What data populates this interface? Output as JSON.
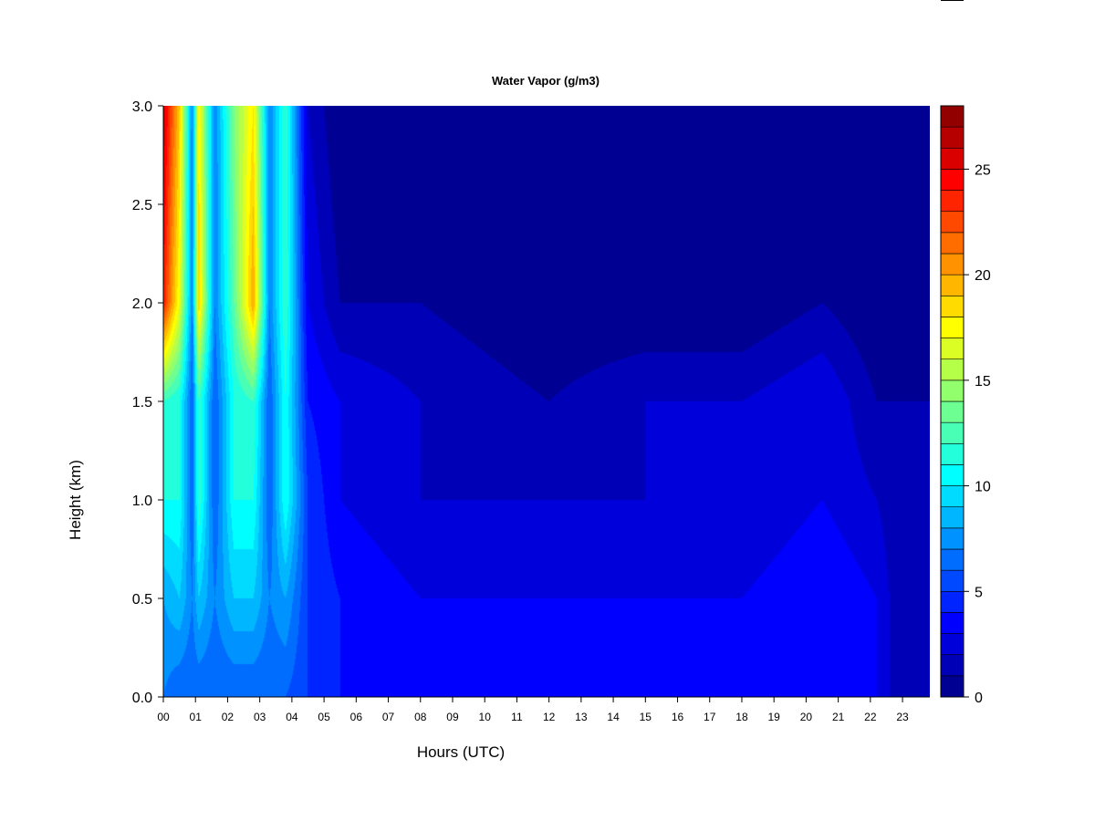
{
  "chart_data": {
    "type": "heatmap",
    "title": "Water Vapor (g/m3)",
    "xlabel": "Hours (UTC)",
    "ylabel": "Height (km)",
    "x_ticks": [
      "00",
      "01",
      "02",
      "03",
      "04",
      "05",
      "06",
      "07",
      "08",
      "09",
      "10",
      "11",
      "12",
      "13",
      "14",
      "15",
      "16",
      "17",
      "18",
      "19",
      "20",
      "21",
      "22",
      "23"
    ],
    "xlim": [
      0,
      23.85
    ],
    "y_ticks": [
      "0.0",
      "0.5",
      "1.0",
      "1.5",
      "2.0",
      "2.5",
      "3.0"
    ],
    "ylim": [
      0,
      3
    ],
    "colorbar": {
      "range": [
        0,
        28
      ],
      "step": 1,
      "ticks": [
        "0",
        "5",
        "10",
        "15",
        "20",
        "25"
      ],
      "tick_values": [
        0,
        5,
        10,
        15,
        20,
        25
      ],
      "colormap": "jet"
    },
    "grid": false,
    "time_height_profile_estimates": [
      {
        "hour": 0.0,
        "v_0km": 7,
        "v_0_5km": 8,
        "v_1km": 11,
        "v_1_5km": 12,
        "v_2km": 24,
        "v_3km": 26
      },
      {
        "hour": 0.5,
        "v_0km": 6,
        "v_0_5km": 9,
        "v_1km": 11,
        "v_1_5km": 11,
        "v_2km": 17,
        "v_3km": 19
      },
      {
        "hour": 0.9,
        "v_0km": 6,
        "v_0_5km": 7,
        "v_1km": 6,
        "v_1_5km": 6,
        "v_2km": 7,
        "v_3km": 7
      },
      {
        "hour": 1.1,
        "v_0km": 6,
        "v_0_5km": 9,
        "v_1km": 12,
        "v_1_5km": 12,
        "v_2km": 19,
        "v_3km": 18
      },
      {
        "hour": 1.6,
        "v_0km": 6,
        "v_0_5km": 7,
        "v_1km": 6,
        "v_1_5km": 6,
        "v_2km": 7,
        "v_3km": 7
      },
      {
        "hour": 2.2,
        "v_0km": 6,
        "v_0_5km": 9,
        "v_1km": 11,
        "v_1_5km": 11,
        "v_2km": 13,
        "v_3km": 14
      },
      {
        "hour": 2.8,
        "v_0km": 6,
        "v_0_5km": 9,
        "v_1km": 11,
        "v_1_5km": 12,
        "v_2km": 20,
        "v_3km": 18
      },
      {
        "hour": 3.3,
        "v_0km": 6,
        "v_0_5km": 7,
        "v_1km": 6,
        "v_1_5km": 6,
        "v_2km": 7,
        "v_3km": 7
      },
      {
        "hour": 3.8,
        "v_0km": 6,
        "v_0_5km": 8,
        "v_1km": 11,
        "v_1_5km": 11,
        "v_2km": 12,
        "v_3km": 12
      },
      {
        "hour": 4.5,
        "v_0km": 5,
        "v_0_5km": 5,
        "v_1km": 5,
        "v_1_5km": 4,
        "v_2km": 3,
        "v_3km": 2
      },
      {
        "hour": 5.5,
        "v_0km": 4,
        "v_0_5km": 4,
        "v_1km": 3,
        "v_1_5km": 3,
        "v_2km": 1,
        "v_3km": 0
      },
      {
        "hour": 8.0,
        "v_0km": 3,
        "v_0_5km": 3,
        "v_1km": 2,
        "v_1_5km": 2,
        "v_2km": 1,
        "v_3km": 0
      },
      {
        "hour": 12.0,
        "v_0km": 3,
        "v_0_5km": 3,
        "v_1km": 2,
        "v_1_5km": 1,
        "v_2km": 0,
        "v_3km": 0
      },
      {
        "hour": 15.0,
        "v_0km": 3,
        "v_0_5km": 3,
        "v_1km": 2,
        "v_1_5km": 2,
        "v_2km": 0,
        "v_3km": 0
      },
      {
        "hour": 18.0,
        "v_0km": 3,
        "v_0_5km": 3,
        "v_1km": 2,
        "v_1_5km": 2,
        "v_2km": 0,
        "v_3km": 0
      },
      {
        "hour": 20.5,
        "v_0km": 3,
        "v_0_5km": 4,
        "v_1km": 3,
        "v_1_5km": 3,
        "v_2km": 1,
        "v_3km": 0
      },
      {
        "hour": 22.2,
        "v_0km": 3,
        "v_0_5km": 3,
        "v_1km": 2,
        "v_1_5km": 1,
        "v_2km": 0,
        "v_3km": 0
      },
      {
        "hour": 23.0,
        "v_0km": 1,
        "v_0_5km": 1,
        "v_1km": 1,
        "v_1_5km": 1,
        "v_2km": 0,
        "v_3km": 0
      }
    ]
  }
}
